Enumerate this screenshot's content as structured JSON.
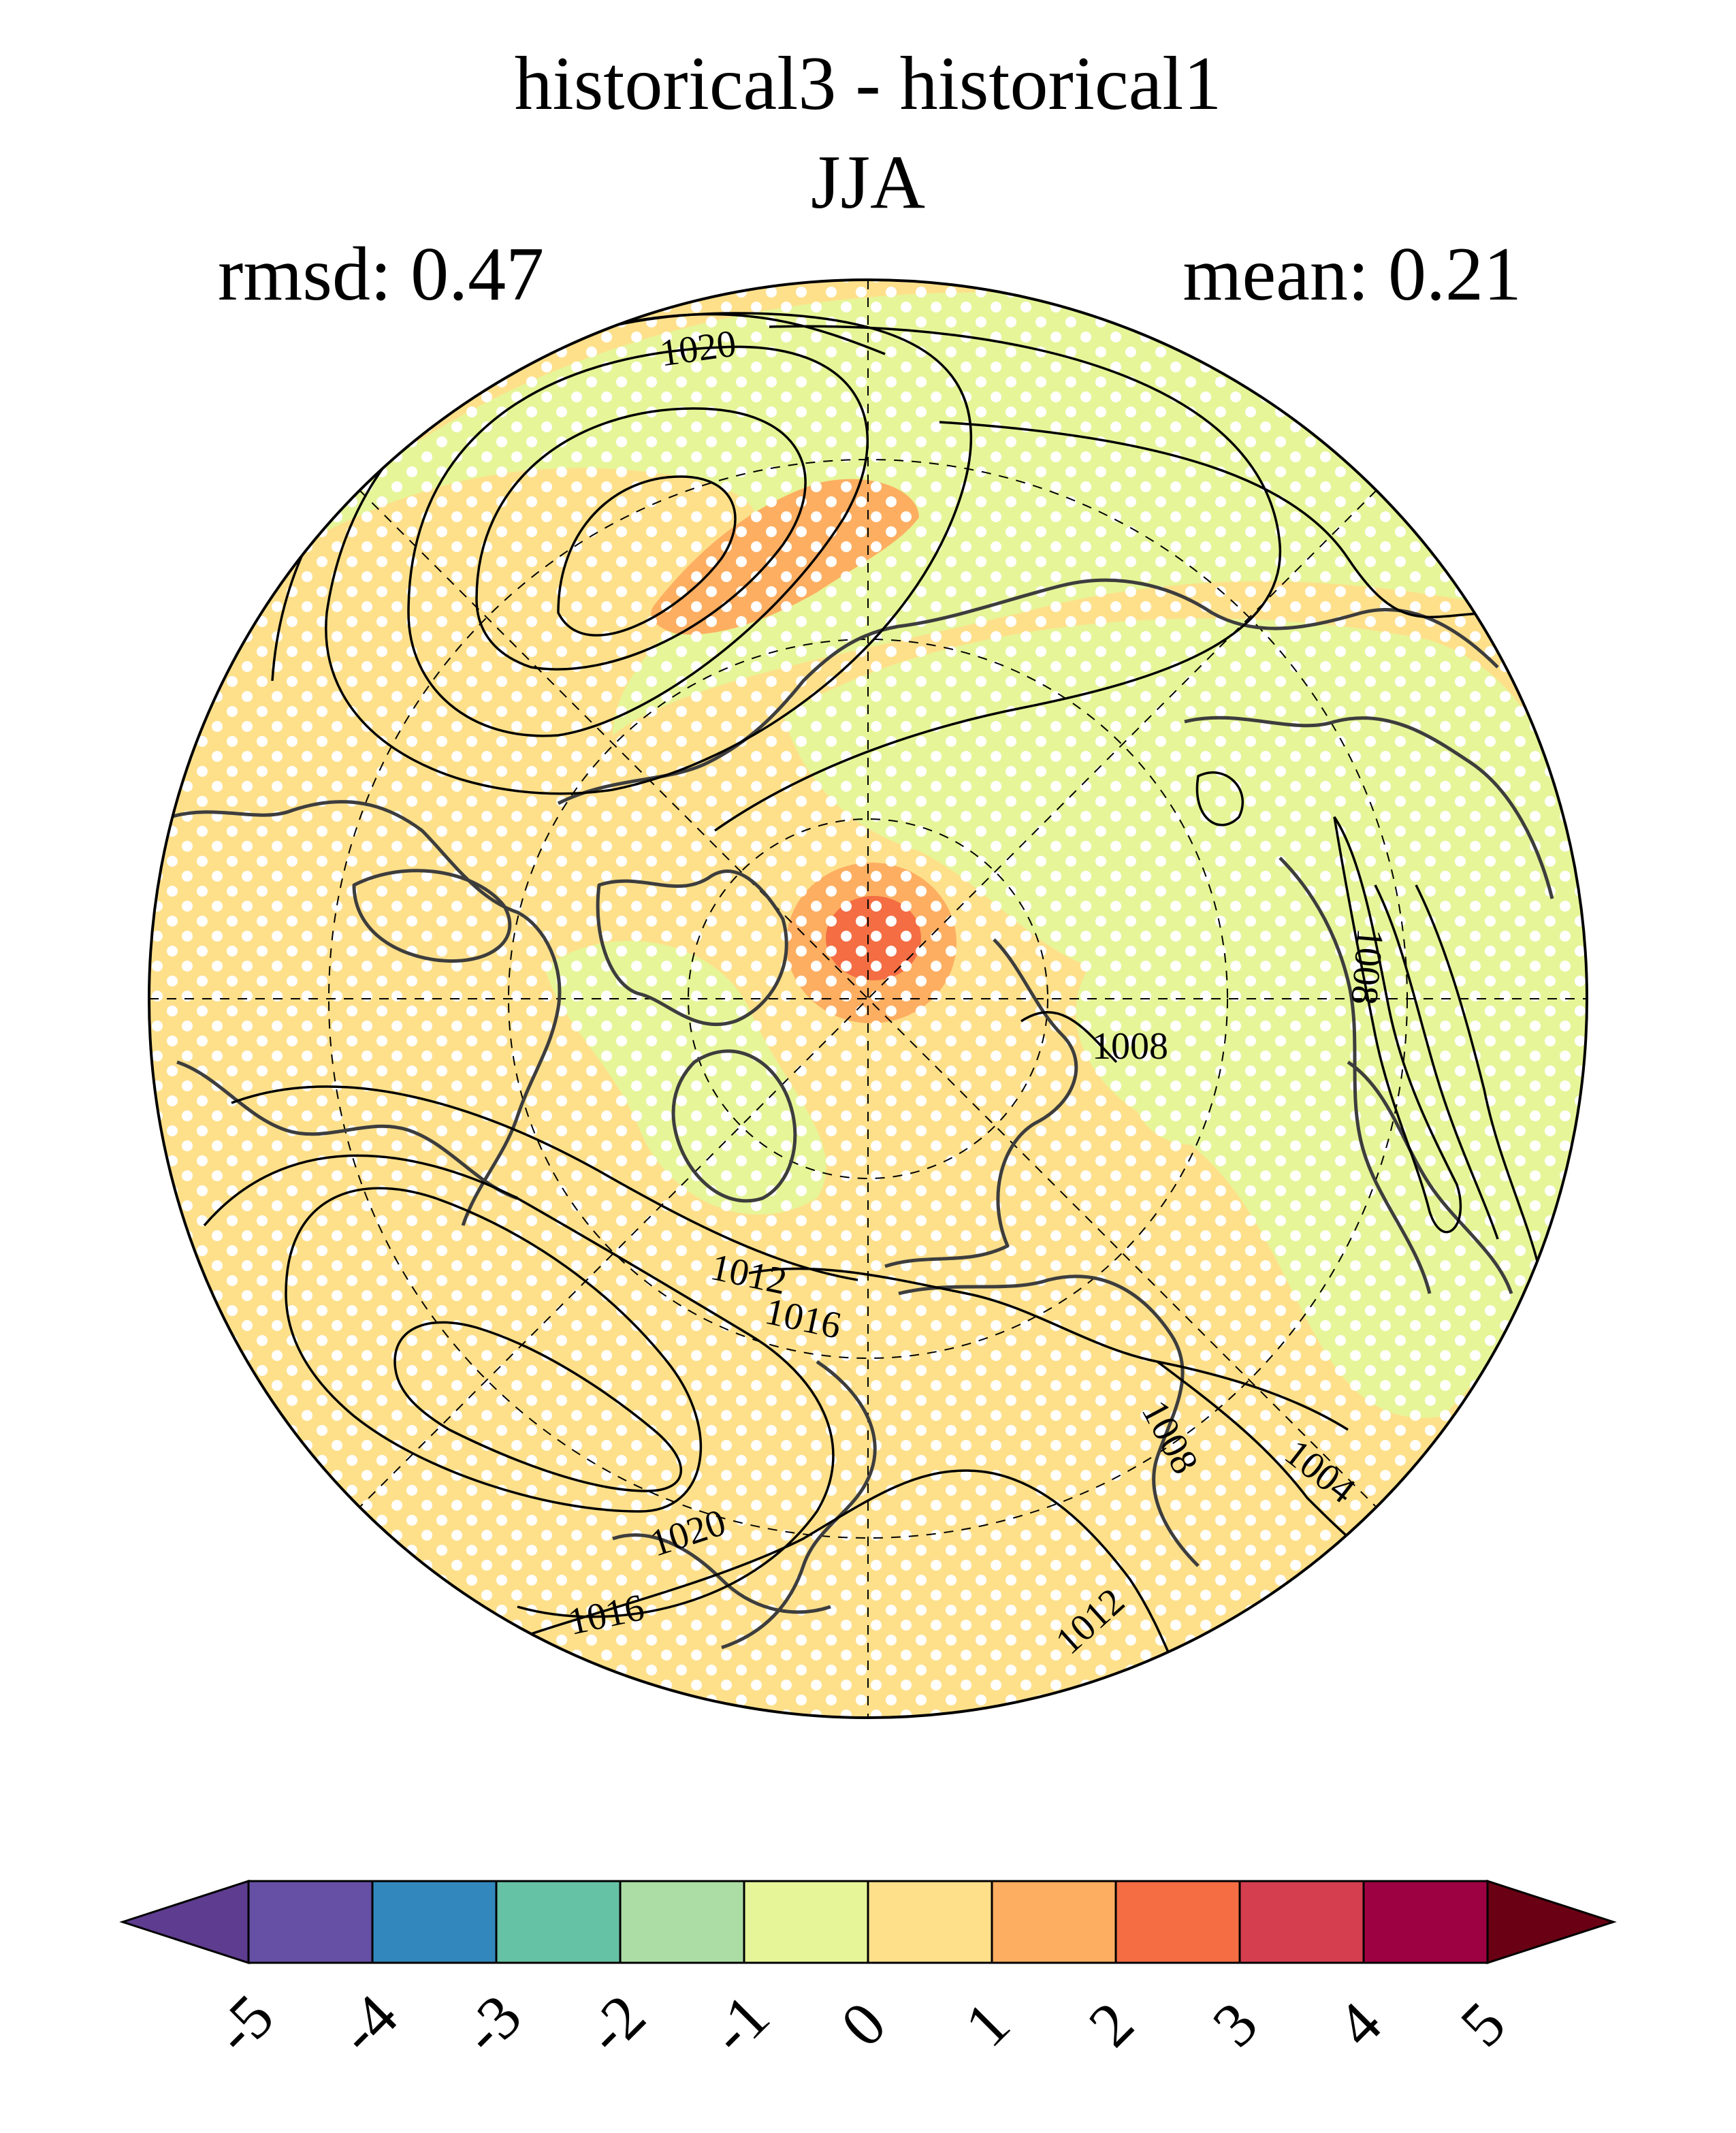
{
  "title": {
    "line1": "historical3 - historical1",
    "line2": "JJA",
    "left_stat": "rmsd: 0.47",
    "right_stat": "mean: 0.21"
  },
  "map": {
    "projection": "north-polar-stereographic",
    "significance_stipple": true,
    "graticule": "dashed"
  },
  "contour_labels": [
    "1020",
    "1008",
    "1008",
    "1012",
    "1016",
    "1020",
    "1016",
    "1008",
    "1004",
    "1012"
  ],
  "colorbar": {
    "ticks": [
      "-5",
      "-4",
      "-3",
      "-2",
      "-1",
      "0",
      "1",
      "2",
      "3",
      "4",
      "5"
    ],
    "colors": [
      "#5e3c8f",
      "#6650a5",
      "#3288bd",
      "#66c2a5",
      "#abdda4",
      "#e6f598",
      "#fee08b",
      "#fdae61",
      "#f46d43",
      "#d53e4f",
      "#9e0142",
      "#6a0013"
    ]
  }
}
